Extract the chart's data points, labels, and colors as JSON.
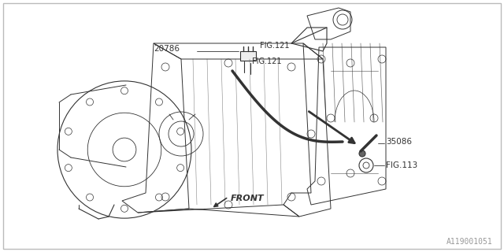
{
  "background_color": "#ffffff",
  "border_color": "#bbbbbb",
  "diagram_id": "A119001051",
  "line_color": "#333333",
  "text_color": "#333333",
  "gray_text_color": "#999999",
  "font_size": 7.5,
  "label_20786": "20786",
  "label_fig121a": "FIG.121",
  "label_fig121b": "FIG.121",
  "label_35086": "35086",
  "label_fig113": "FIG.113",
  "label_front": "FRONT"
}
